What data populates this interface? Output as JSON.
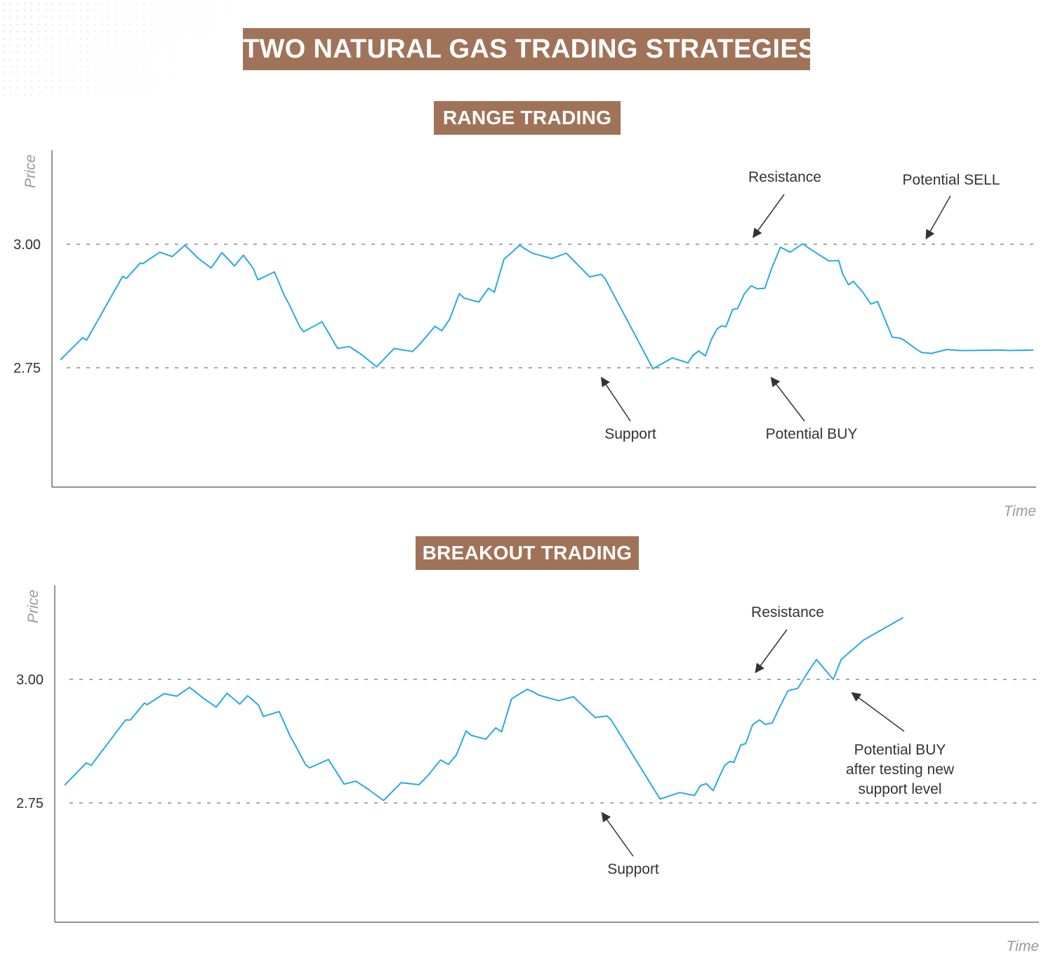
{
  "title": "TWO NATURAL GAS TRADING STRATEGIES",
  "colors": {
    "banner": "#a07358",
    "line": "#29a9e6",
    "level": "#8c8c8c",
    "axis": "#707070",
    "arrow": "#333333"
  },
  "chart_data": [
    {
      "type": "line",
      "title": "RANGE TRADING",
      "xlabel": "Time",
      "ylabel": "Price",
      "ylim": [
        2.5,
        3.2
      ],
      "y_ticks": [
        3.0,
        2.75
      ],
      "y_tick_labels": [
        "3.00",
        "2.75"
      ],
      "xlim": [
        0,
        100
      ],
      "levels": [
        {
          "name": "Resistance",
          "value": 3.0
        },
        {
          "name": "Support",
          "value": 2.75
        }
      ],
      "series": [
        {
          "x": [
            0,
            2.3,
            2.7,
            6.4,
            6.8,
            8.2,
            8.5,
            10.2,
            11.5,
            12.8,
            14.2,
            15.5,
            16.6,
            17.9,
            18.8,
            19.8,
            20.3,
            22.0,
            23.0,
            23.5,
            24.6,
            25.0,
            26.9,
            28.5,
            29.7,
            31.0,
            32.5,
            34.3,
            36.2,
            37.0,
            38.5,
            39.2,
            40.0,
            41.0,
            41.5,
            43.0,
            44.0,
            44.6,
            45.6,
            46.2,
            47.2,
            47.8,
            48.5,
            50.5,
            52.0,
            54.4,
            55.6,
            56.0,
            60.9,
            62.9,
            64.5,
            65.0,
            65.6,
            66.3,
            66.9,
            67.5,
            68.0,
            68.4,
            69.1,
            69.6,
            70.3,
            71.0,
            71.6,
            72.4,
            73.1,
            74.0,
            75.0,
            76.3,
            77.0,
            79.0,
            80.0,
            80.4,
            81.0,
            81.5,
            82.5,
            83.3,
            84.0,
            85.5,
            86.3,
            86.7,
            87.8,
            88.5,
            89.1,
            89.5,
            91.1,
            92.4,
            93.5,
            96.6,
            97.5,
            100.0
          ],
          "values": [
            2.766,
            2.811,
            2.806,
            2.935,
            2.931,
            2.962,
            2.961,
            2.984,
            2.975,
            2.998,
            2.971,
            2.952,
            2.983,
            2.956,
            2.978,
            2.952,
            2.928,
            2.944,
            2.897,
            2.879,
            2.833,
            2.823,
            2.843,
            2.789,
            2.793,
            2.776,
            2.752,
            2.789,
            2.783,
            2.799,
            2.834,
            2.825,
            2.848,
            2.9,
            2.891,
            2.883,
            2.911,
            2.903,
            2.97,
            2.98,
            2.998,
            2.99,
            2.982,
            2.971,
            2.982,
            2.934,
            2.939,
            2.93,
            2.748,
            2.77,
            2.76,
            2.775,
            2.784,
            2.774,
            2.807,
            2.829,
            2.835,
            2.833,
            2.868,
            2.87,
            2.9,
            2.916,
            2.91,
            2.911,
            2.951,
            2.994,
            2.984,
            3.001,
            2.991,
            2.966,
            2.967,
            2.94,
            2.918,
            2.925,
            2.902,
            2.879,
            2.884,
            2.812,
            2.81,
            2.806,
            2.79,
            2.781,
            2.78,
            2.779,
            2.787,
            2.785,
            2.785,
            2.786,
            2.785,
            2.786
          ]
        }
      ],
      "annotations": [
        {
          "text": "Resistance",
          "target": [
            71.2,
            3.0
          ]
        },
        {
          "text": "Potential SELL",
          "target": [
            88.4,
            3.0
          ]
        },
        {
          "text": "Support",
          "target": [
            55.6,
            2.75
          ]
        },
        {
          "text": "Potential BUY",
          "target": [
            71.9,
            2.75
          ]
        }
      ]
    },
    {
      "type": "line",
      "title": "BREAKOUT TRADING",
      "xlabel": "Time",
      "ylabel": "Price",
      "ylim": [
        2.5,
        3.2
      ],
      "y_ticks": [
        3.0,
        2.75
      ],
      "y_tick_labels": [
        "3.00",
        "2.75"
      ],
      "xlim": [
        0,
        100
      ],
      "levels": [
        {
          "name": "Resistance",
          "value": 3.0
        },
        {
          "name": "Support",
          "value": 2.75
        }
      ],
      "series": [
        {
          "x": [
            1.0,
            3.2,
            3.7,
            7.2,
            7.7,
            9.1,
            9.4,
            11.1,
            12.4,
            13.7,
            15.1,
            16.4,
            17.5,
            18.8,
            19.6,
            20.7,
            21.2,
            22.8,
            23.9,
            24.4,
            25.5,
            25.9,
            27.8,
            29.4,
            30.6,
            31.9,
            33.4,
            35.2,
            37.0,
            37.8,
            39.2,
            40.0,
            40.8,
            41.8,
            42.3,
            43.8,
            44.8,
            45.4,
            46.4,
            47.0,
            48.0,
            48.6,
            49.2,
            51.2,
            52.7,
            54.9,
            56.1,
            56.5,
            61.5,
            63.5,
            65.0,
            65.6,
            66.2,
            66.9,
            67.5,
            68.1,
            68.6,
            69.0,
            69.7,
            70.2,
            70.9,
            71.6,
            72.2,
            72.9,
            73.6,
            74.5,
            75.5,
            76.7,
            77.4,
            79.1,
            79.9,
            82.2,
            86.2
          ],
          "values": [
            2.786,
            2.831,
            2.826,
            2.918,
            2.918,
            2.952,
            2.949,
            2.971,
            2.966,
            2.984,
            2.962,
            2.944,
            2.972,
            2.95,
            2.967,
            2.948,
            2.925,
            2.935,
            2.886,
            2.868,
            2.827,
            2.821,
            2.838,
            2.788,
            2.794,
            2.777,
            2.755,
            2.791,
            2.787,
            2.803,
            2.837,
            2.828,
            2.847,
            2.896,
            2.887,
            2.879,
            2.902,
            2.894,
            2.96,
            2.968,
            2.98,
            2.975,
            2.968,
            2.957,
            2.965,
            2.923,
            2.926,
            2.919,
            2.758,
            2.771,
            2.765,
            2.785,
            2.789,
            2.775,
            2.802,
            2.827,
            2.834,
            2.832,
            2.867,
            2.87,
            2.908,
            2.918,
            2.909,
            2.912,
            2.942,
            2.977,
            2.982,
            3.02,
            3.04,
            3.0,
            3.04,
            3.08,
            3.125
          ]
        }
      ],
      "annotations": [
        {
          "text": "Resistance",
          "target": [
            71.2,
            3.0
          ]
        },
        {
          "text": "Support",
          "target": [
            55.6,
            2.75
          ]
        },
        {
          "text": "Potential BUY",
          "target": [
            81.0,
            2.99
          ]
        },
        {
          "text": "after testing new",
          "target": null
        },
        {
          "text": "support level",
          "target": null
        }
      ]
    }
  ]
}
